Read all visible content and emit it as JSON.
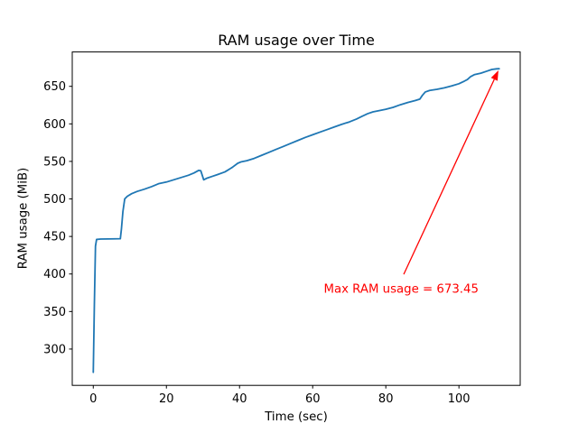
{
  "chart_data": {
    "type": "line",
    "title": "RAM usage over Time",
    "xlabel": "Time (sec)",
    "ylabel": "RAM usage (MiB)",
    "xlim": [
      -5.75,
      116.75
    ],
    "ylim": [
      251.6,
      695.8
    ],
    "x_ticks": [
      0,
      20,
      40,
      60,
      80,
      100
    ],
    "y_ticks": [
      300,
      350,
      400,
      450,
      500,
      550,
      600,
      650
    ],
    "grid": false,
    "legend": null,
    "series": [
      {
        "name": "RAM usage",
        "color": "#1f77b4",
        "x": [
          0,
          0.3,
          0.6,
          0.9,
          2,
          7.4,
          7.7,
          8.1,
          8.6,
          9.3,
          10.5,
          12,
          14,
          16,
          18,
          20,
          22,
          24,
          26,
          27.5,
          28.8,
          29.4,
          30.2,
          31,
          32.5,
          34,
          36,
          38,
          39.5,
          40.5,
          42,
          44,
          46,
          48,
          50,
          52,
          54,
          56,
          58,
          60,
          62,
          64,
          66,
          68,
          70,
          72,
          73.5,
          75,
          76.5,
          78.5,
          80,
          82,
          84,
          86,
          88,
          89.3,
          90,
          90.8,
          92,
          94,
          96,
          98,
          100,
          101.5,
          102.3,
          103.2,
          104.2,
          106,
          107.5,
          109,
          110.3,
          111
        ],
        "y": [
          269,
          360,
          437,
          446,
          446.5,
          447,
          460,
          483,
          500,
          503.5,
          507,
          510,
          513,
          516.5,
          520.5,
          522.5,
          525.5,
          528.5,
          531.5,
          534.5,
          538,
          537.5,
          525.5,
          527.5,
          530,
          532.5,
          536,
          542,
          547.5,
          549.5,
          551,
          554,
          558,
          562,
          566,
          570,
          574,
          578,
          582,
          585.5,
          589,
          592.5,
          596,
          599.5,
          602.5,
          606.5,
          610,
          613.5,
          616,
          618,
          619.5,
          622,
          625.5,
          628.5,
          631,
          633,
          638,
          642.5,
          644.5,
          646,
          648,
          650.5,
          653.5,
          657,
          659,
          663,
          665.5,
          667.5,
          670,
          672.5,
          673.3,
          673.45
        ]
      }
    ],
    "annotation": {
      "text": "Max RAM usage = 673.45",
      "color": "#ff0000",
      "text_xy": [
        84.2,
        379
      ],
      "arrow_start_xy": [
        84.9,
        399.5
      ],
      "arrow_end_xy": [
        110.8,
        671.3
      ],
      "max_value": 673.45
    }
  },
  "figure": {
    "background": "#ffffff",
    "spine_color": "#000000",
    "tick_color": "#000000"
  }
}
